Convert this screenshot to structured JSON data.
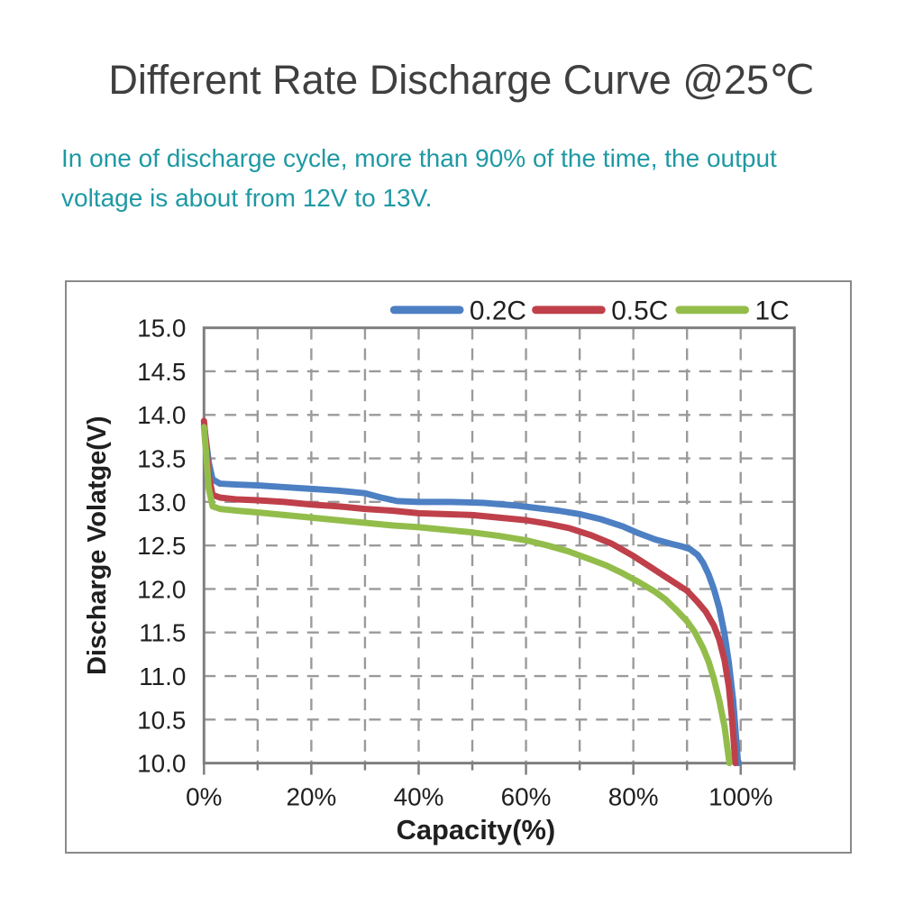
{
  "header": {
    "title": "Different Rate Discharge Curve @25℃",
    "subtitle_line1": "In one of discharge cycle, more than 90% of the time, the output",
    "subtitle_line2": "voltage is about from 12V to 13V."
  },
  "colors": {
    "title": "#3f3f3f",
    "subtitle": "#1e99a3",
    "axis_text": "#1f1f1f",
    "grid": "#9a9a9a",
    "frame": "#7f7f7f",
    "box_border": "#8a8a8a",
    "series_blue": "#4d7fc3",
    "series_red": "#bf404a",
    "series_green": "#93bd4b"
  },
  "chart_data": {
    "type": "line",
    "title": "",
    "xlabel": "Capacity(%)",
    "ylabel": "Discharge Volatge(V)",
    "xlim": [
      0,
      110
    ],
    "ylim": [
      10,
      15
    ],
    "grid": "dashed",
    "legend_position": "top",
    "xticks_labeled": [
      0,
      20,
      40,
      60,
      80,
      100
    ],
    "xtick_labels": [
      "0%",
      "20%",
      "40%",
      "60%",
      "80%",
      "100%"
    ],
    "xticks_minor": [
      10,
      30,
      50,
      70,
      90,
      110
    ],
    "x_gridlines": [
      10,
      20,
      30,
      40,
      50,
      60,
      70,
      80,
      90,
      100
    ],
    "yticks": [
      15.0,
      14.5,
      14.0,
      13.5,
      13.0,
      12.5,
      12.0,
      11.5,
      11.0,
      10.5,
      10.0
    ],
    "ytick_labels": [
      "15.0",
      "14.5",
      "14.0",
      "13.5",
      "13.0",
      "12.5",
      "12.0",
      "11.5",
      "11.0",
      "10.5",
      "10.0"
    ],
    "series": [
      {
        "name": "0.2C",
        "color": "#4d7fc3",
        "points": [
          [
            0,
            13.88
          ],
          [
            0.4,
            13.7
          ],
          [
            0.9,
            13.45
          ],
          [
            1.6,
            13.26
          ],
          [
            3,
            13.21
          ],
          [
            6,
            13.2
          ],
          [
            10,
            13.19
          ],
          [
            15,
            13.17
          ],
          [
            20,
            13.15
          ],
          [
            25,
            13.13
          ],
          [
            30,
            13.1
          ],
          [
            33,
            13.05
          ],
          [
            36,
            13.01
          ],
          [
            40,
            13.0
          ],
          [
            46,
            13.0
          ],
          [
            52,
            12.99
          ],
          [
            58,
            12.96
          ],
          [
            62,
            12.93
          ],
          [
            66,
            12.9
          ],
          [
            70,
            12.86
          ],
          [
            74,
            12.8
          ],
          [
            78,
            12.72
          ],
          [
            81,
            12.64
          ],
          [
            84,
            12.57
          ],
          [
            87,
            12.52
          ],
          [
            89,
            12.49
          ],
          [
            90.5,
            12.46
          ],
          [
            92,
            12.39
          ],
          [
            93,
            12.3
          ],
          [
            94,
            12.17
          ],
          [
            95,
            12.0
          ],
          [
            96,
            11.78
          ],
          [
            97,
            11.48
          ],
          [
            97.8,
            11.15
          ],
          [
            98.6,
            10.72
          ],
          [
            99.2,
            10.25
          ],
          [
            99.5,
            10.0
          ]
        ]
      },
      {
        "name": "0.5C",
        "color": "#bf404a",
        "points": [
          [
            0,
            13.93
          ],
          [
            0.4,
            13.65
          ],
          [
            0.9,
            13.3
          ],
          [
            1.6,
            13.08
          ],
          [
            3,
            13.05
          ],
          [
            6,
            13.03
          ],
          [
            10,
            13.02
          ],
          [
            15,
            13.0
          ],
          [
            20,
            12.97
          ],
          [
            25,
            12.95
          ],
          [
            30,
            12.92
          ],
          [
            35,
            12.9
          ],
          [
            40,
            12.87
          ],
          [
            45,
            12.86
          ],
          [
            50,
            12.85
          ],
          [
            55,
            12.82
          ],
          [
            60,
            12.79
          ],
          [
            64,
            12.75
          ],
          [
            68,
            12.7
          ],
          [
            72,
            12.62
          ],
          [
            76,
            12.52
          ],
          [
            80,
            12.38
          ],
          [
            83,
            12.26
          ],
          [
            86,
            12.14
          ],
          [
            88,
            12.06
          ],
          [
            90,
            11.98
          ],
          [
            92,
            11.85
          ],
          [
            93.5,
            11.74
          ],
          [
            95,
            11.58
          ],
          [
            96,
            11.42
          ],
          [
            97,
            11.18
          ],
          [
            97.8,
            10.88
          ],
          [
            98.4,
            10.5
          ],
          [
            99,
            10.0
          ]
        ]
      },
      {
        "name": "1C",
        "color": "#93bd4b",
        "points": [
          [
            0,
            13.86
          ],
          [
            0.4,
            13.55
          ],
          [
            0.9,
            13.15
          ],
          [
            1.6,
            12.95
          ],
          [
            3,
            12.92
          ],
          [
            6,
            12.9
          ],
          [
            10,
            12.88
          ],
          [
            15,
            12.85
          ],
          [
            20,
            12.82
          ],
          [
            25,
            12.79
          ],
          [
            30,
            12.76
          ],
          [
            35,
            12.73
          ],
          [
            40,
            12.71
          ],
          [
            45,
            12.68
          ],
          [
            50,
            12.65
          ],
          [
            55,
            12.61
          ],
          [
            60,
            12.56
          ],
          [
            64,
            12.5
          ],
          [
            68,
            12.43
          ],
          [
            72,
            12.34
          ],
          [
            75,
            12.27
          ],
          [
            78,
            12.18
          ],
          [
            81,
            12.08
          ],
          [
            84,
            11.97
          ],
          [
            86,
            11.88
          ],
          [
            88,
            11.76
          ],
          [
            90,
            11.63
          ],
          [
            91.5,
            11.5
          ],
          [
            93,
            11.32
          ],
          [
            94,
            11.17
          ],
          [
            95,
            10.97
          ],
          [
            96,
            10.72
          ],
          [
            97,
            10.42
          ],
          [
            97.9,
            10.0
          ]
        ]
      }
    ]
  }
}
